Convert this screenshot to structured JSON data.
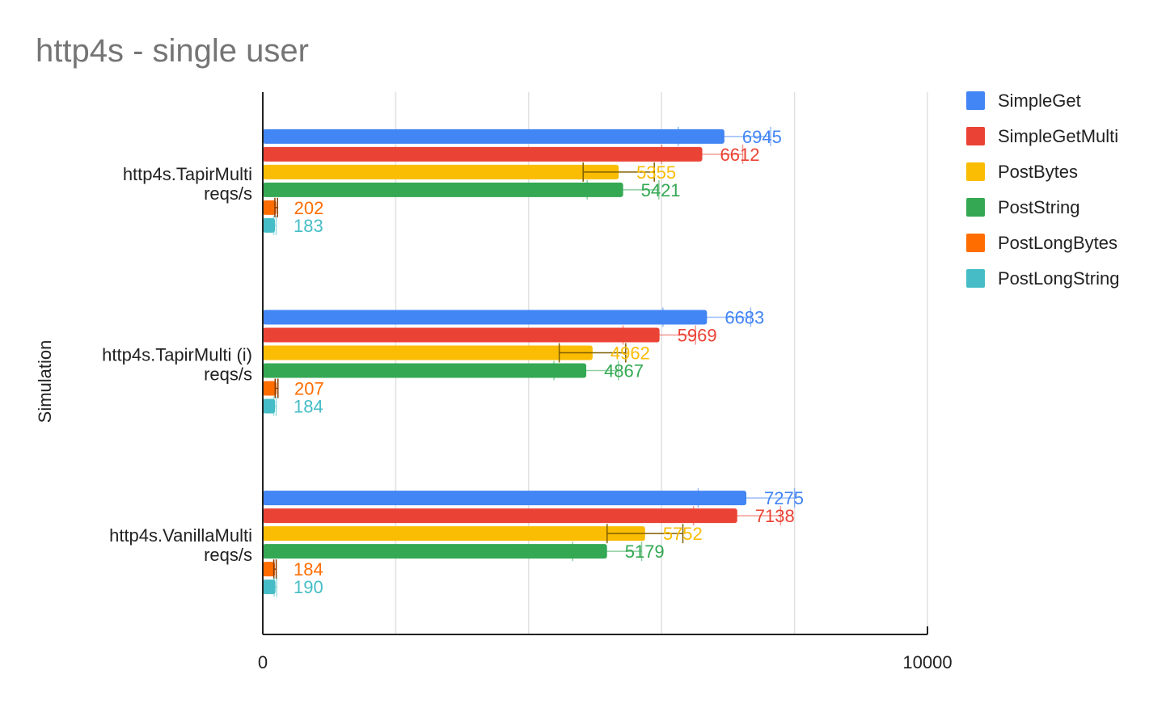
{
  "chart_data": {
    "type": "bar",
    "orientation": "horizontal",
    "title": "http4s - single user",
    "ylabel": "Simulation",
    "xlabel": "",
    "xlim": [
      0,
      10000
    ],
    "x_ticks": [
      0,
      10000
    ],
    "gridlines": [
      0,
      2000,
      4000,
      6000,
      8000,
      10000
    ],
    "grid": true,
    "legend_position": "right",
    "categories": [
      [
        "http4s.TapirMulti",
        "reqs/s"
      ],
      [
        "http4s.TapirMulti (i)",
        "reqs/s"
      ],
      [
        "http4s.VanillaMulti",
        "reqs/s"
      ]
    ],
    "series": [
      {
        "name": "SimpleGet",
        "color": "#4285f4",
        "values": [
          6945,
          6683,
          7275
        ],
        "error_low": [
          6250,
          6020,
          6550
        ],
        "error_high": [
          7640,
          7340,
          8000
        ]
      },
      {
        "name": "SimpleGetMulti",
        "color": "#ea4335",
        "values": [
          6612,
          5969,
          7138
        ],
        "error_low": [
          6000,
          5420,
          6480
        ],
        "error_high": [
          7220,
          6510,
          7790
        ]
      },
      {
        "name": "PostBytes",
        "color": "#fbbc04",
        "values": [
          5355,
          4962,
          5752
        ],
        "error_low": [
          4820,
          4460,
          5180
        ],
        "error_high": [
          5890,
          5460,
          6320
        ]
      },
      {
        "name": "PostString",
        "color": "#34a853",
        "values": [
          5421,
          4867,
          5179
        ],
        "error_low": [
          4880,
          4380,
          4660
        ],
        "error_high": [
          5960,
          5350,
          5700
        ]
      },
      {
        "name": "PostLongBytes",
        "color": "#ff6d01",
        "values": [
          202,
          207,
          184
        ],
        "error_low": [
          182,
          186,
          166
        ],
        "error_high": [
          222,
          228,
          202
        ]
      },
      {
        "name": "PostLongString",
        "color": "#46bdc6",
        "values": [
          183,
          184,
          190
        ],
        "error_low": [
          165,
          166,
          171
        ],
        "error_high": [
          201,
          202,
          209
        ]
      }
    ]
  }
}
